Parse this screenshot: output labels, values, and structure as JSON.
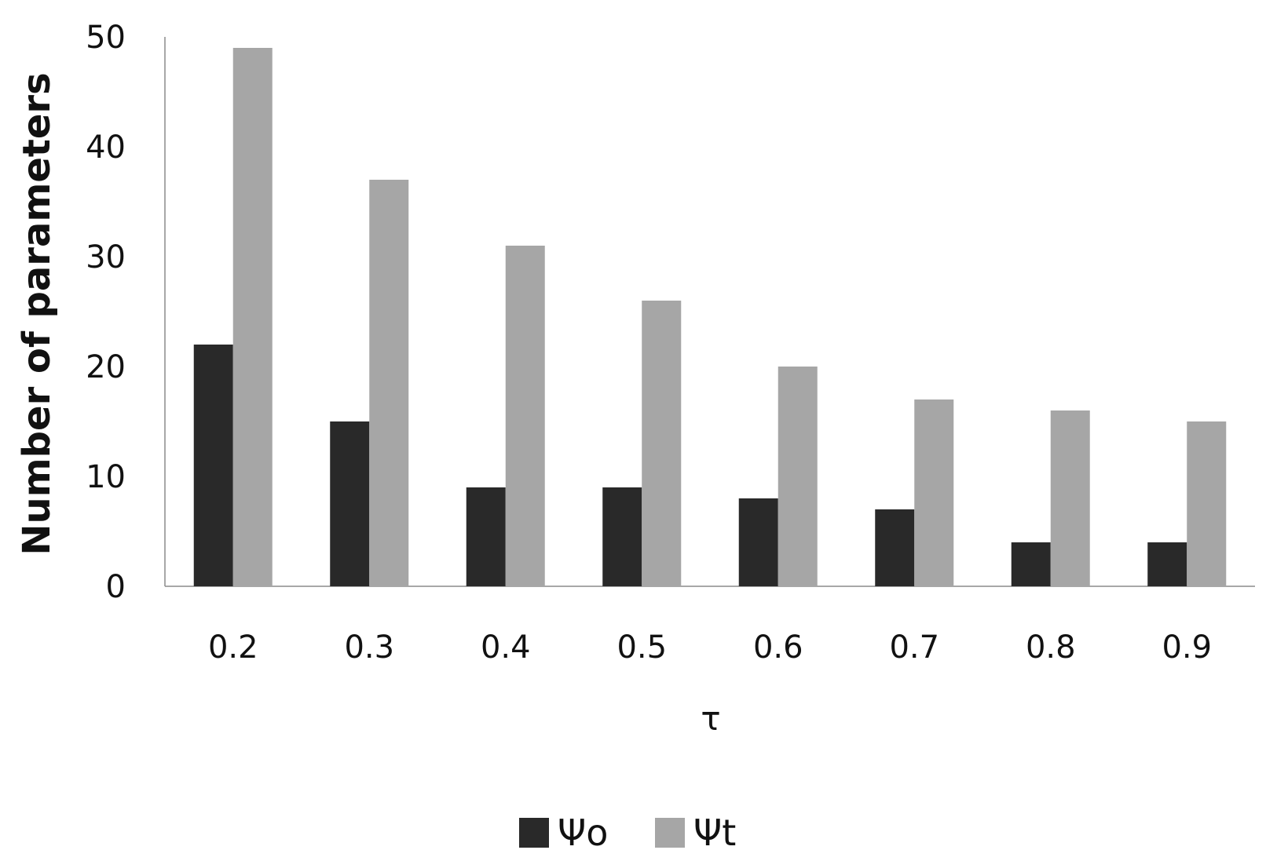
{
  "chart_data": {
    "type": "bar",
    "title": "",
    "xlabel": "τ",
    "ylabel": "Number of parameters",
    "categories": [
      "0.2",
      "0.3",
      "0.4",
      "0.5",
      "0.6",
      "0.7",
      "0.8",
      "0.9"
    ],
    "ylim": [
      0,
      50
    ],
    "yticks": [
      0,
      10,
      20,
      30,
      40,
      50
    ],
    "grid": false,
    "legend_position": "bottom",
    "series": [
      {
        "name": "Ψo",
        "color": "#292929",
        "values": [
          22,
          15,
          9,
          9,
          8,
          7,
          4,
          4
        ]
      },
      {
        "name": "Ψt",
        "color": "#a6a6a6",
        "values": [
          49,
          37,
          31,
          26,
          20,
          17,
          16,
          15
        ]
      }
    ]
  }
}
